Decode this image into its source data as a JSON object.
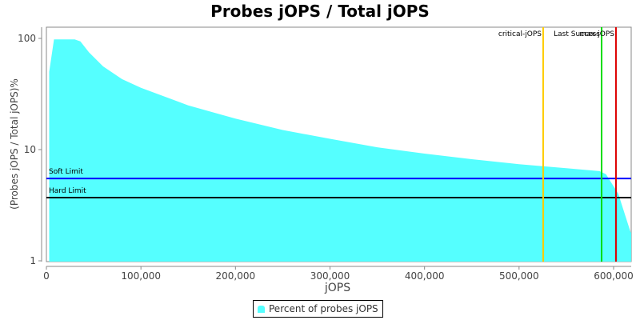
{
  "chart_data": {
    "type": "area",
    "title": "Probes jOPS / Total jOPS",
    "xlabel": "jOPS",
    "ylabel": "(Probes jOPS / Total jOPS)%",
    "yscale": "log",
    "xlim": [
      0,
      618600
    ],
    "ylim": [
      1,
      100
    ],
    "xticks": [
      "0",
      "100,000",
      "200,000",
      "300,000",
      "400,000",
      "500,000",
      "600,000"
    ],
    "yticks": [
      "1",
      "10",
      "100"
    ],
    "legend": {
      "position": "bottom",
      "entries": [
        "Percent of probes jOPS"
      ]
    },
    "series": [
      {
        "name": "Percent of probes jOPS",
        "color": "#55ffff",
        "points": [
          [
            3000,
            50
          ],
          [
            8000,
            98
          ],
          [
            30000,
            98
          ],
          [
            36000,
            94
          ],
          [
            45000,
            75
          ],
          [
            60000,
            56
          ],
          [
            80000,
            43
          ],
          [
            100000,
            36
          ],
          [
            150000,
            25
          ],
          [
            200000,
            19
          ],
          [
            250000,
            15
          ],
          [
            300000,
            12.5
          ],
          [
            350000,
            10.5
          ],
          [
            400000,
            9.2
          ],
          [
            450000,
            8.2
          ],
          [
            500000,
            7.4
          ],
          [
            550000,
            6.8
          ],
          [
            585000,
            6.4
          ],
          [
            592000,
            6.0
          ],
          [
            605000,
            4.0
          ],
          [
            618000,
            1.8
          ]
        ]
      }
    ],
    "horizontal_lines": [
      {
        "label": "Soft Limit",
        "value": 5.5,
        "value_note": "estimated; y-axis scale uncertain",
        "color": "#0000ff"
      },
      {
        "label": "Hard Limit",
        "value": 3.7,
        "value_note": "estimated; y-axis scale uncertain",
        "color": "#000000"
      }
    ],
    "vertical_lines": [
      {
        "label": "critical-jOPS",
        "value": 525500,
        "color": "#ffcc00"
      },
      {
        "label": "Last Success",
        "value": 587300,
        "color": "#00dd00"
      },
      {
        "label": "max-jOPS",
        "value": 602500,
        "color": "#dd0000"
      }
    ]
  },
  "title": "Probes jOPS / Total jOPS",
  "xlabel": "jOPS",
  "ylabel": "(Probes jOPS / Total jOPS)%",
  "legend_label": "Percent of probes jOPS"
}
